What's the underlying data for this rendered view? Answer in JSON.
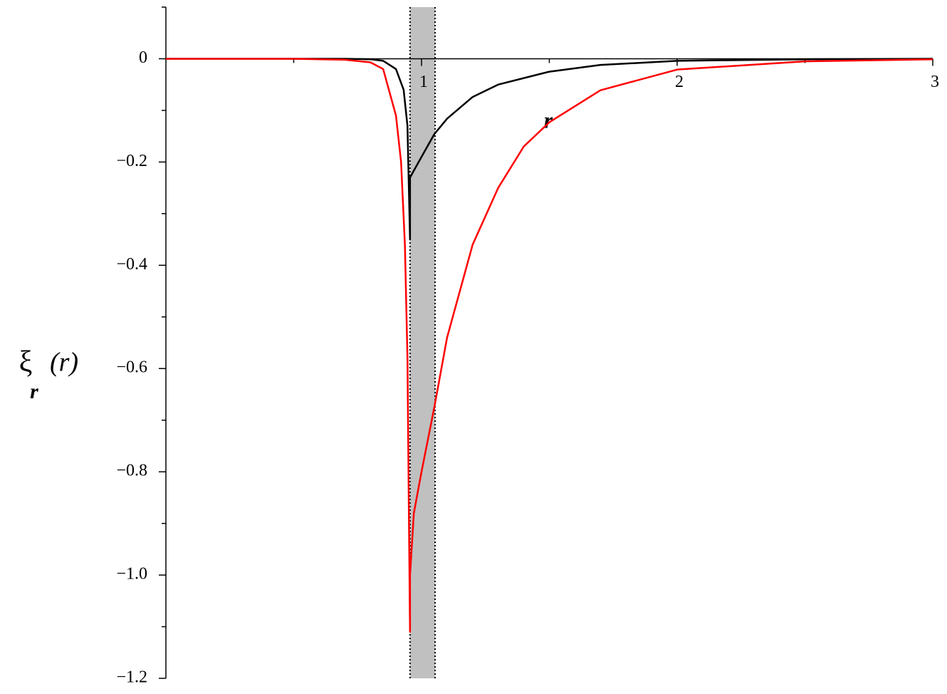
{
  "chart_data": {
    "type": "line",
    "xlabel": "r",
    "ylabel": [
      "ξ",
      "r",
      "(r)"
    ],
    "xlim": [
      0,
      3
    ],
    "ylim": [
      -1.2,
      0.1
    ],
    "xticks": [
      1,
      2,
      3
    ],
    "xminorticks": [
      0.5,
      1.5,
      2.5
    ],
    "yticks": [
      0,
      {
        "value": -0.2,
        "label": "−0.2"
      },
      {
        "value": -0.4,
        "label": "−0.4"
      },
      {
        "value": -0.6,
        "label": "−0.6"
      },
      {
        "value": -0.8,
        "label": "−0.8"
      },
      {
        "value": -1.0,
        "label": "−1.0"
      },
      {
        "value": -1.2,
        "label": "−1.2"
      }
    ],
    "yminorticks": [
      0.1,
      -0.1,
      -0.3,
      -0.5,
      -0.7,
      -0.9,
      -1.1
    ],
    "shaded_region": [
      0.955,
      1.053
    ],
    "shaded_color": "#c0c0c0",
    "series": [
      {
        "color": "#000000",
        "x": [
          0,
          0.5,
          0.7,
          0.8,
          0.85,
          0.9,
          0.93,
          0.945,
          0.955,
          0.955,
          1.0,
          1.05,
          1.1,
          1.2,
          1.3,
          1.5,
          1.7,
          2.0,
          2.5,
          3.0
        ],
        "values": [
          0,
          0,
          0,
          -0.001,
          -0.004,
          -0.02,
          -0.06,
          -0.13,
          -0.35,
          -0.23,
          -0.19,
          -0.146,
          -0.116,
          -0.074,
          -0.05,
          -0.025,
          -0.012,
          -0.004,
          -0.001,
          0
        ]
      },
      {
        "color": "#ff0000",
        "x": [
          0,
          0.5,
          0.7,
          0.8,
          0.85,
          0.9,
          0.92,
          0.935,
          0.945,
          0.95,
          0.955,
          0.955,
          0.97,
          1.0,
          1.05,
          1.1,
          1.2,
          1.3,
          1.4,
          1.5,
          1.7,
          2.0,
          2.5,
          3.0
        ],
        "values": [
          0,
          0,
          -0.002,
          -0.007,
          -0.02,
          -0.11,
          -0.2,
          -0.36,
          -0.58,
          -0.85,
          -1.11,
          -1.0,
          -0.88,
          -0.8,
          -0.675,
          -0.54,
          -0.36,
          -0.25,
          -0.17,
          -0.123,
          -0.061,
          -0.021,
          -0.005,
          -0.001
        ]
      }
    ]
  }
}
